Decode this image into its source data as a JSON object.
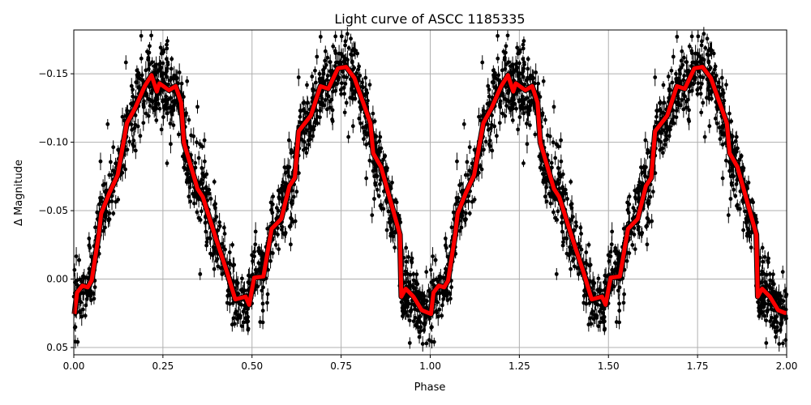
{
  "chart_data": {
    "type": "scatter",
    "title": "Light curve of ASCC 1185335",
    "xlabel": "Phase",
    "ylabel": "Δ Magnitude",
    "xlim": [
      0.0,
      2.0
    ],
    "ylim": [
      0.0553,
      -0.182
    ],
    "y_inverted": true,
    "grid": true,
    "xticks": [
      0.0,
      0.25,
      0.5,
      0.75,
      1.0,
      1.25,
      1.5,
      1.75,
      2.0
    ],
    "xtick_labels": [
      "0.00",
      "0.25",
      "0.50",
      "0.75",
      "1.00",
      "1.25",
      "1.50",
      "1.75",
      "2.00"
    ],
    "yticks": [
      -0.15,
      -0.1,
      -0.05,
      0.0,
      0.05
    ],
    "ytick_labels": [
      "−0.15",
      "−0.10",
      "−0.05",
      "0.00",
      "0.05"
    ],
    "series": [
      {
        "type": "errorbar-scatter",
        "color": "#000000",
        "description_scatter": 0.012
      },
      {
        "type": "line",
        "color": "#ff0000",
        "outline_color": "#000000",
        "phase_repeats_every": 1.0,
        "x": [
          0.002,
          0.009,
          0.024,
          0.039,
          0.05,
          0.07,
          0.077,
          0.1,
          0.123,
          0.149,
          0.172,
          0.199,
          0.218,
          0.233,
          0.24,
          0.267,
          0.286,
          0.301,
          0.309,
          0.347,
          0.362,
          0.4,
          0.43,
          0.453,
          0.482,
          0.492,
          0.506,
          0.532,
          0.555,
          0.582,
          0.605,
          0.62,
          0.631,
          0.665,
          0.692,
          0.714,
          0.741,
          0.764,
          0.787,
          0.832,
          0.84,
          0.862,
          0.915,
          0.919,
          0.931,
          0.953,
          0.976,
          0.995
        ],
        "y": [
          0.0255,
          0.0099,
          0.0048,
          0.006,
          0.001,
          -0.0325,
          -0.048,
          -0.063,
          -0.076,
          -0.114,
          -0.125,
          -0.141,
          -0.149,
          -0.137,
          -0.143,
          -0.138,
          -0.141,
          -0.129,
          -0.0996,
          -0.066,
          -0.06,
          -0.0286,
          -0.005,
          0.0148,
          0.0128,
          0.0188,
          -0.001,
          -0.002,
          -0.0367,
          -0.044,
          -0.068,
          -0.074,
          -0.108,
          -0.1195,
          -0.141,
          -0.139,
          -0.154,
          -0.155,
          -0.147,
          -0.114,
          -0.092,
          -0.082,
          -0.0325,
          0.0128,
          0.007,
          0.0128,
          0.0227,
          0.0247
        ]
      }
    ]
  }
}
